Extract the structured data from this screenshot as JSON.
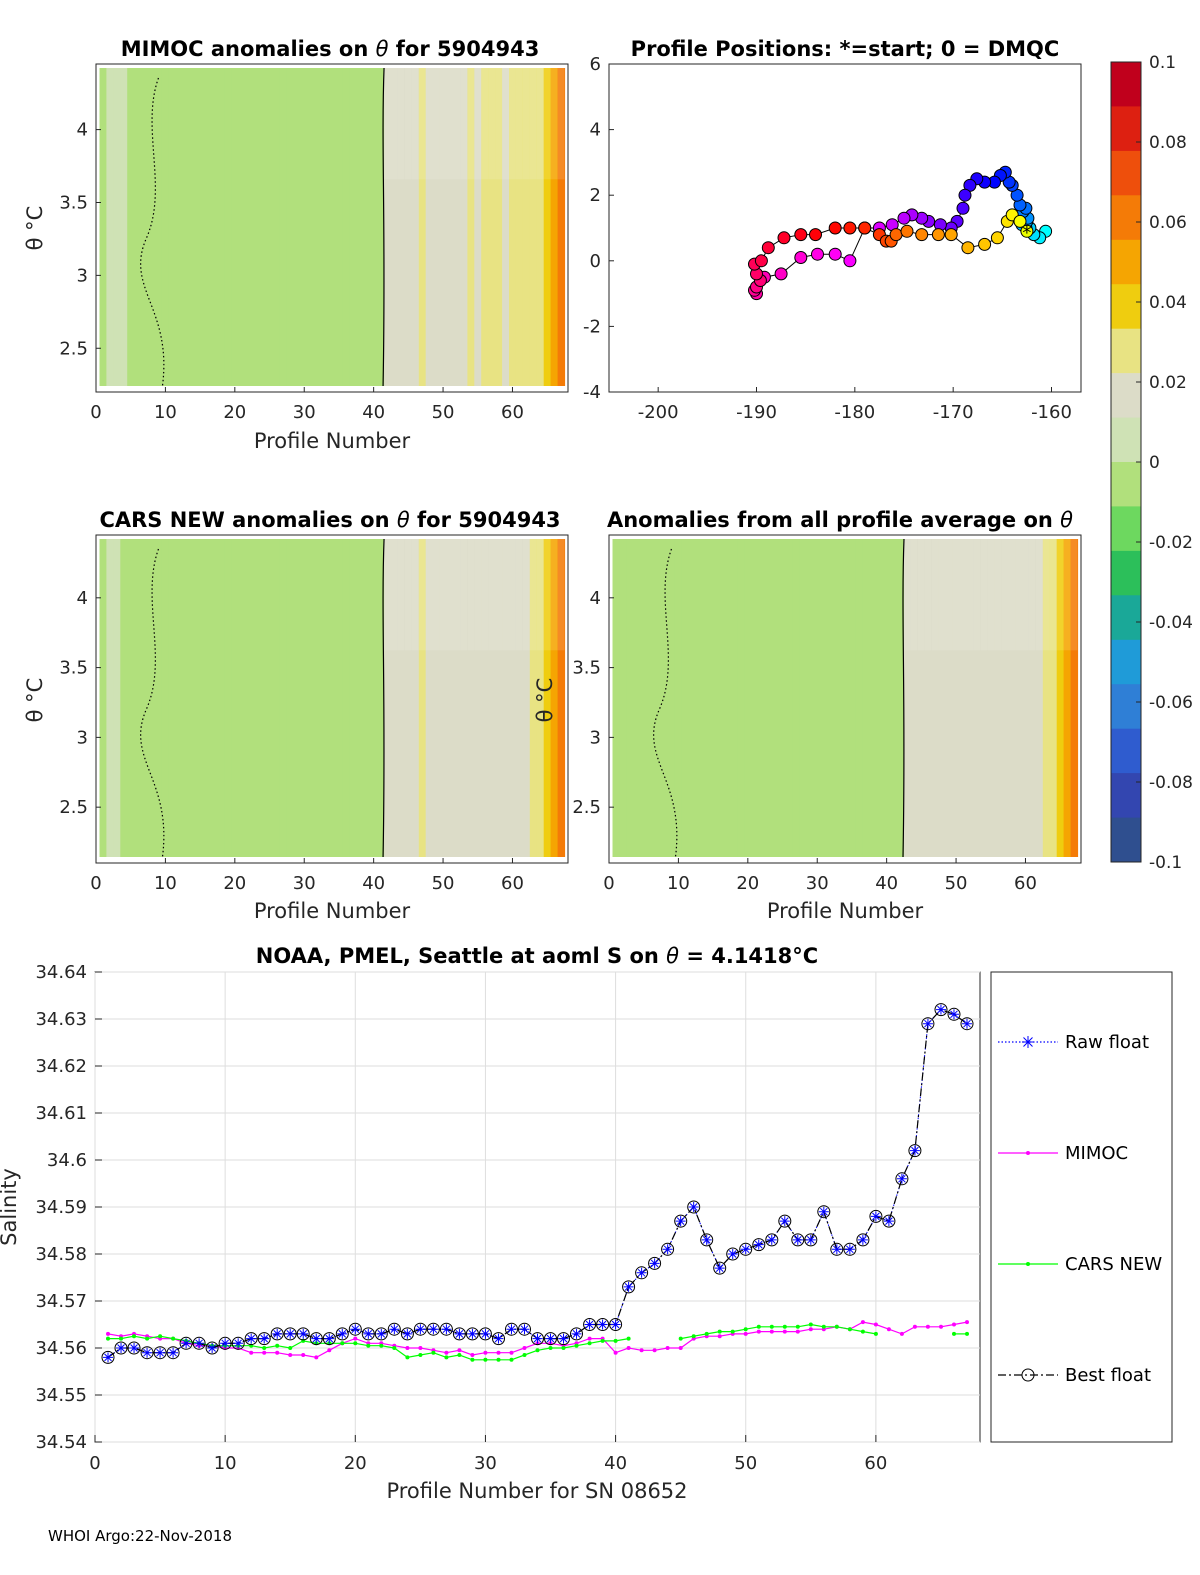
{
  "panels": {
    "mimoc": {
      "title_prefix": "MIMOC anomalies on ",
      "title_suffix": "  for 5904943",
      "xlabel": "Profile Number",
      "ylabel": "θ °C"
    },
    "positions": {
      "title": "Profile Positions: *=start; 0 = DMQC"
    },
    "cars": {
      "title_prefix": "CARS NEW anomalies on ",
      "title_suffix": " for 5904943",
      "xlabel": "Profile Number",
      "ylabel": "θ °C"
    },
    "avg": {
      "title_prefix": "Anomalies from all profile average on ",
      "xlabel": "Profile Number",
      "ylabel": "θ °C"
    },
    "salinity": {
      "title_prefix": "NOAA, PMEL, Seattle at aoml S on ",
      "title_suffix": " = 4.1418°C",
      "xlabel": "Profile Number for SN 08652",
      "ylabel": "Salinity"
    }
  },
  "footer": "WHOI Argo:22-Nov-2018",
  "colorbar": {
    "ticks": [
      "0.1",
      "0.08",
      "0.06",
      "0.04",
      "0.02",
      "0",
      "-0.02",
      "-0.04",
      "-0.06",
      "-0.08",
      "-0.1"
    ],
    "colors": [
      "#c0001c",
      "#dd2011",
      "#ee4f0c",
      "#f47b07",
      "#f5a502",
      "#efcd0f",
      "#e8e383",
      "#dcdcc8",
      "#cfe2b5",
      "#b1e07c",
      "#6dd85f",
      "#2cbf5a",
      "#1aa898",
      "#1f9bd8",
      "#2f7fd6",
      "#2f5ccf",
      "#3346b0",
      "#2f4f8f"
    ]
  },
  "chart_data": [
    {
      "type": "heatmap",
      "name": "MIMOC anomalies",
      "xlim": [
        0,
        68
      ],
      "ylim": [
        2.2,
        4.45
      ],
      "xticks": [
        0,
        10,
        20,
        30,
        40,
        50,
        60
      ],
      "yticks": [
        2.5,
        3,
        3.5,
        4
      ],
      "anomaly_profile": [
        0,
        0.001,
        0.001,
        0.001,
        0,
        0,
        0,
        0,
        0,
        0,
        0,
        0,
        0,
        0,
        0,
        0,
        0,
        0,
        0,
        0,
        0,
        0,
        0,
        0,
        0,
        0,
        0,
        0,
        0,
        0,
        0,
        0,
        0,
        0,
        0,
        0,
        0,
        0,
        0,
        0,
        0,
        0.018,
        0.02,
        0.019,
        0.02,
        0.021,
        0.026,
        0.02,
        0.018,
        0.02,
        0.021,
        0.022,
        0.02,
        0.023,
        0.021,
        0.024,
        0.026,
        0.023,
        0.022,
        0.024,
        0.024,
        0.024,
        0.026,
        0.03,
        0.038,
        0.055,
        0.06
      ]
    },
    {
      "type": "scatter",
      "name": "Profile positions",
      "xlim": [
        -205,
        -157
      ],
      "ylim": [
        -4,
        6
      ],
      "xticks": [
        -200,
        -190,
        -180,
        -170,
        -160
      ],
      "yticks": [
        -4,
        -2,
        0,
        2,
        4,
        6
      ],
      "lon": [
        -162.5,
        -163.2,
        -164.0,
        -164.5,
        -165.5,
        -166.8,
        -168.5,
        -170.2,
        -171.5,
        -173.2,
        -174.7,
        -175.8,
        -176.3,
        -176.8,
        -177.5,
        -179.0,
        -180.5,
        -182.0,
        -184.0,
        -185.5,
        -187.2,
        -188.8,
        -189.5,
        -190.2,
        -190.0,
        -189.6,
        -190.0,
        -190.2,
        -190.0,
        -189.2,
        -187.5,
        -185.5,
        -183.8,
        -182.0,
        -180.5,
        -179.0,
        -177.5,
        -176.2,
        -175.0,
        -174.2,
        -173.2,
        -172.5,
        -171.3,
        -170.2,
        -169.6,
        -169.0,
        -168.8,
        -168.3,
        -167.6,
        -166.8,
        -165.8,
        -165.2,
        -164.7,
        -164.3,
        -164.0,
        -163.5,
        -163.2,
        -162.6,
        -162.9,
        -162.4,
        -162.5,
        -163.0,
        -162.6,
        -162.2,
        -161.8,
        -161.2,
        -160.6
      ],
      "lat": [
        0.9,
        1.2,
        1.4,
        1.2,
        0.7,
        0.5,
        0.4,
        0.8,
        0.8,
        0.8,
        0.9,
        0.8,
        0.6,
        0.6,
        0.8,
        1.0,
        1.0,
        1.0,
        0.8,
        0.8,
        0.7,
        0.4,
        0.0,
        -0.1,
        -0.4,
        -0.6,
        -0.8,
        -0.9,
        -1.0,
        -0.5,
        -0.4,
        0.1,
        0.2,
        0.2,
        0.0,
        1.0,
        1.0,
        1.1,
        1.3,
        1.4,
        1.3,
        1.2,
        1.1,
        1.0,
        1.2,
        1.6,
        2.0,
        2.3,
        2.5,
        2.4,
        2.4,
        2.6,
        2.7,
        2.4,
        2.3,
        2.0,
        1.7,
        1.6,
        1.5,
        1.3,
        1.2,
        1.1,
        1.0,
        1.0,
        0.8,
        0.7,
        0.9
      ]
    },
    {
      "type": "heatmap",
      "name": "CARS NEW anomalies",
      "xlim": [
        0,
        68
      ],
      "ylim": [
        2.1,
        4.45
      ],
      "xticks": [
        0,
        10,
        20,
        30,
        40,
        50,
        60
      ],
      "yticks": [
        2.5,
        3,
        3.5,
        4
      ],
      "anomaly_profile": [
        0,
        0.001,
        0.001,
        0,
        0,
        0,
        0,
        0,
        0,
        0,
        0,
        0,
        0,
        0,
        0,
        0,
        0,
        0,
        0,
        0,
        0,
        0,
        0,
        0,
        0,
        0,
        0,
        0,
        0,
        0,
        0,
        0,
        0,
        0,
        0,
        0,
        0,
        0,
        0,
        0,
        0,
        0.014,
        0.016,
        0.016,
        0.017,
        0.018,
        0.024,
        0.017,
        0.016,
        0.017,
        0.018,
        0.018,
        0.018,
        0.019,
        0.018,
        0.019,
        0.02,
        0.02,
        0.02,
        0.02,
        0.02,
        0.022,
        0.025,
        0.028,
        0.036,
        0.05,
        0.058
      ]
    },
    {
      "type": "heatmap",
      "name": "Anomalies from all profile average",
      "xlim": [
        0,
        68
      ],
      "ylim": [
        2.1,
        4.45
      ],
      "xticks": [
        0,
        10,
        20,
        30,
        40,
        50,
        60
      ],
      "yticks": [
        2.5,
        3,
        3.5,
        4
      ],
      "anomaly_profile": [
        -0.002,
        -0.002,
        -0.002,
        -0.002,
        -0.002,
        -0.002,
        -0.002,
        -0.002,
        -0.002,
        -0.002,
        -0.002,
        -0.002,
        -0.002,
        -0.002,
        -0.002,
        -0.002,
        -0.002,
        -0.002,
        -0.002,
        -0.002,
        -0.002,
        -0.002,
        -0.002,
        -0.002,
        -0.002,
        -0.002,
        -0.002,
        -0.002,
        -0.002,
        -0.002,
        -0.002,
        -0.002,
        -0.002,
        -0.002,
        -0.002,
        -0.002,
        -0.002,
        -0.002,
        -0.002,
        -0.002,
        -0.002,
        -0.002,
        0.012,
        0.014,
        0.015,
        0.016,
        0.02,
        0.015,
        0.014,
        0.015,
        0.016,
        0.016,
        0.016,
        0.017,
        0.016,
        0.017,
        0.018,
        0.018,
        0.018,
        0.018,
        0.018,
        0.02,
        0.024,
        0.028,
        0.036,
        0.05,
        0.058
      ]
    },
    {
      "type": "line",
      "name": "Salinity on theta",
      "xlim": [
        0,
        68
      ],
      "ylim": [
        34.54,
        34.64
      ],
      "xticks": [
        0,
        10,
        20,
        30,
        40,
        50,
        60
      ],
      "yticks": [
        34.54,
        34.55,
        34.56,
        34.57,
        34.58,
        34.59,
        34.6,
        34.61,
        34.62,
        34.63,
        34.64
      ],
      "series": [
        {
          "name": "Raw float",
          "color": "#0000ff",
          "x": [
            1,
            2,
            3,
            4,
            5,
            6,
            7,
            8,
            9,
            10,
            11,
            12,
            13,
            14,
            15,
            16,
            17,
            18,
            19,
            20,
            21,
            22,
            23,
            24,
            25,
            26,
            27,
            28,
            29,
            30,
            31,
            32,
            33,
            34,
            35,
            36,
            37,
            38,
            39,
            40,
            41,
            42,
            43,
            44,
            45,
            46,
            47,
            48,
            49,
            50,
            51,
            52,
            53,
            54,
            55,
            56,
            57,
            58,
            59,
            60,
            61,
            62,
            63,
            64,
            65,
            66,
            67
          ],
          "y": [
            34.558,
            34.56,
            34.56,
            34.559,
            34.559,
            34.559,
            34.561,
            34.561,
            34.56,
            34.561,
            34.561,
            34.562,
            34.562,
            34.563,
            34.563,
            34.563,
            34.562,
            34.562,
            34.563,
            34.564,
            34.563,
            34.563,
            34.564,
            34.563,
            34.564,
            34.564,
            34.564,
            34.563,
            34.563,
            34.563,
            34.562,
            34.564,
            34.564,
            34.562,
            34.562,
            34.562,
            34.563,
            34.565,
            34.565,
            34.565,
            34.573,
            34.576,
            34.578,
            34.581,
            34.587,
            34.59,
            34.583,
            34.577,
            34.58,
            34.581,
            34.582,
            34.583,
            34.587,
            34.583,
            34.583,
            34.589,
            34.581,
            34.581,
            34.583,
            34.588,
            34.587,
            34.596,
            34.602,
            34.629,
            34.632,
            34.631,
            34.629
          ]
        },
        {
          "name": "MIMOC",
          "color": "#ff00ff",
          "x": [
            1,
            2,
            3,
            4,
            5,
            6,
            7,
            8,
            9,
            10,
            11,
            12,
            13,
            14,
            15,
            16,
            17,
            18,
            19,
            20,
            21,
            22,
            23,
            24,
            25,
            26,
            27,
            28,
            29,
            30,
            31,
            32,
            33,
            34,
            35,
            36,
            37,
            38,
            39,
            40,
            41,
            42,
            43,
            44,
            45,
            46,
            47,
            48,
            49,
            50,
            51,
            52,
            53,
            54,
            55,
            56,
            57,
            58,
            59,
            60,
            61,
            62,
            63,
            64,
            65,
            66,
            67
          ],
          "y": [
            34.563,
            34.5625,
            34.563,
            34.5625,
            34.562,
            34.562,
            34.561,
            34.5605,
            34.5605,
            34.56,
            34.56,
            34.559,
            34.559,
            34.559,
            34.5585,
            34.5585,
            34.558,
            34.5595,
            34.561,
            34.562,
            34.561,
            34.561,
            34.5605,
            34.56,
            34.56,
            34.5595,
            34.559,
            34.5595,
            34.5585,
            34.559,
            34.559,
            34.559,
            34.56,
            34.561,
            34.561,
            34.5605,
            34.561,
            34.562,
            34.562,
            34.559,
            34.56,
            34.5595,
            34.5595,
            34.56,
            34.56,
            34.562,
            34.5625,
            34.5625,
            34.563,
            34.563,
            34.5635,
            34.5635,
            34.5635,
            34.5635,
            34.564,
            34.564,
            34.5645,
            34.564,
            34.5655,
            34.565,
            34.564,
            34.563,
            34.5645,
            34.5645,
            34.5645,
            34.565,
            34.5655
          ]
        },
        {
          "name": "CARS NEW",
          "color": "#00ff00",
          "x": [
            1,
            2,
            3,
            4,
            5,
            6,
            7,
            8,
            9,
            10,
            11,
            12,
            13,
            14,
            15,
            16,
            17,
            18,
            19,
            20,
            21,
            22,
            23,
            24,
            25,
            26,
            27,
            28,
            29,
            30,
            31,
            32,
            33,
            34,
            35,
            36,
            37,
            38,
            39,
            40,
            41,
            45,
            46,
            47,
            48,
            49,
            50,
            51,
            52,
            53,
            54,
            55,
            56,
            57,
            58,
            59,
            60,
            66,
            67
          ],
          "y": [
            34.562,
            34.562,
            34.5625,
            34.562,
            34.5625,
            34.562,
            34.5615,
            34.561,
            34.5605,
            34.5605,
            34.5605,
            34.5605,
            34.56,
            34.5605,
            34.56,
            34.5615,
            34.561,
            34.561,
            34.561,
            34.561,
            34.5605,
            34.5605,
            34.56,
            34.558,
            34.5585,
            34.559,
            34.558,
            34.5585,
            34.5575,
            34.5575,
            34.5575,
            34.5575,
            34.5585,
            34.5595,
            34.56,
            34.56,
            34.5605,
            34.561,
            34.5615,
            34.5615,
            34.562,
            34.562,
            34.5625,
            34.563,
            34.5635,
            34.5635,
            34.564,
            34.5645,
            34.5645,
            34.5645,
            34.5645,
            34.565,
            34.5645,
            34.5645,
            34.564,
            34.5635,
            34.563,
            34.563,
            34.563
          ]
        },
        {
          "name": "Best float",
          "color": "#000000",
          "x": [
            1,
            2,
            3,
            4,
            5,
            6,
            7,
            8,
            9,
            10,
            11,
            12,
            13,
            14,
            15,
            16,
            17,
            18,
            19,
            20,
            21,
            22,
            23,
            24,
            25,
            26,
            27,
            28,
            29,
            30,
            31,
            32,
            33,
            34,
            35,
            36,
            37,
            38,
            39,
            40,
            41,
            42,
            43,
            44,
            45,
            46,
            47,
            48,
            49,
            50,
            51,
            52,
            53,
            54,
            55,
            56,
            57,
            58,
            59,
            60,
            61,
            62,
            63,
            64,
            65,
            66,
            67
          ],
          "y": [
            34.558,
            34.56,
            34.56,
            34.559,
            34.559,
            34.559,
            34.561,
            34.561,
            34.56,
            34.561,
            34.561,
            34.562,
            34.562,
            34.563,
            34.563,
            34.563,
            34.562,
            34.562,
            34.563,
            34.564,
            34.563,
            34.563,
            34.564,
            34.563,
            34.564,
            34.564,
            34.564,
            34.563,
            34.563,
            34.563,
            34.562,
            34.564,
            34.564,
            34.562,
            34.562,
            34.562,
            34.563,
            34.565,
            34.565,
            34.565,
            34.573,
            34.576,
            34.578,
            34.581,
            34.587,
            34.59,
            34.583,
            34.577,
            34.58,
            34.581,
            34.582,
            34.583,
            34.587,
            34.583,
            34.583,
            34.589,
            34.581,
            34.581,
            34.583,
            34.588,
            34.587,
            34.596,
            34.602,
            34.629,
            34.632,
            34.631,
            34.629
          ]
        }
      ],
      "legend": "right"
    }
  ]
}
